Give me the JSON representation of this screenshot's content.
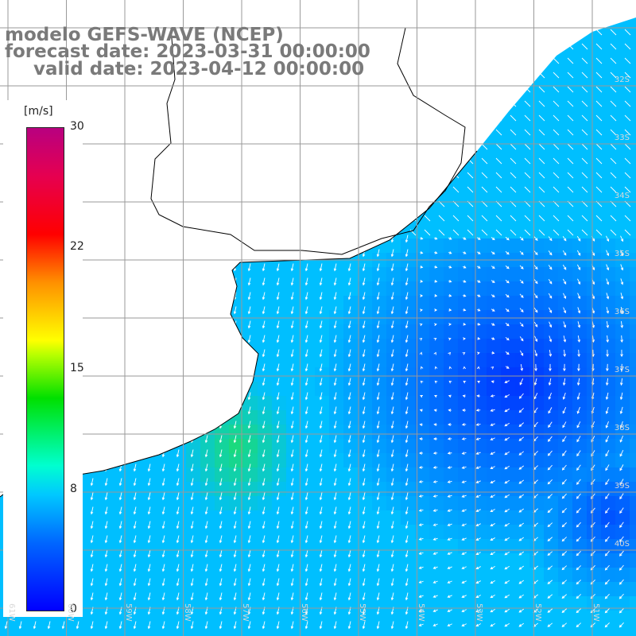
{
  "header": {
    "line1": "modelo GEFS-WAVE (NCEP)",
    "line2": "forecast date: 2023-03-31 00:00:00",
    "line3": "valid date: 2023-04-12 00:00:00"
  },
  "legend": {
    "unit": "[m/s]",
    "ticks": [
      "30",
      "22",
      "15",
      "8",
      "0"
    ],
    "colors": [
      "#0000ff",
      "#0066ff",
      "#00c8ff",
      "#00ffd0",
      "#00e000",
      "#ffff00",
      "#ff9000",
      "#ff0000",
      "#b80080"
    ]
  },
  "lat_labels": [
    "32S",
    "33S",
    "34S",
    "35S",
    "36S",
    "37S",
    "38S",
    "39S",
    "40S"
  ],
  "lon_labels": [
    "61W",
    "60W",
    "59W",
    "58W",
    "57W",
    "56W",
    "55W",
    "54W",
    "53W",
    "52W",
    "51W"
  ],
  "map": {
    "ocean_color": "#00bfff",
    "calm_color": "#0033ff",
    "high_color": "#20e060",
    "grid_color": "#9a9a9a",
    "coast_color": "#000000"
  }
}
